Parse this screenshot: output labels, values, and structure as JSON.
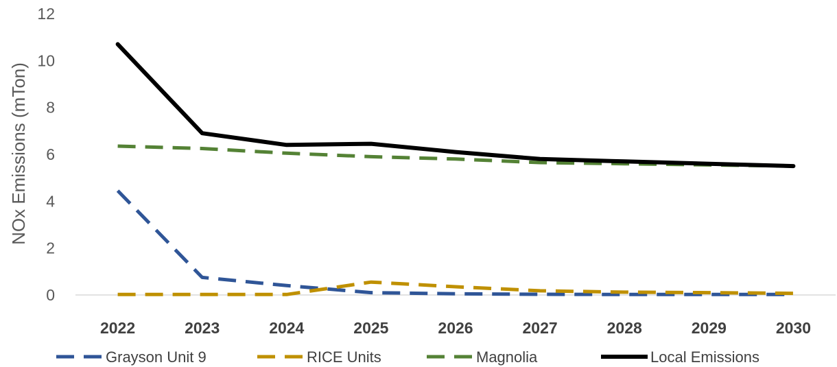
{
  "chart_data": {
    "type": "line",
    "title": "",
    "xlabel": "",
    "ylabel": "NOx Emissions (mTon)",
    "ylim": [
      0,
      12
    ],
    "yticks": [
      0,
      2,
      4,
      6,
      8,
      10,
      12
    ],
    "grid": false,
    "legend_position": "bottom",
    "categories": [
      "2022",
      "2023",
      "2024",
      "2025",
      "2026",
      "2027",
      "2028",
      "2029",
      "2030"
    ],
    "series": [
      {
        "name": "Grayson Unit 9",
        "color": "#2F5597",
        "style": "dashed",
        "values": [
          4.45,
          0.75,
          0.4,
          0.1,
          0.05,
          0.03,
          0.02,
          0.02,
          0.02
        ]
      },
      {
        "name": "RICE Units",
        "color": "#BF9000",
        "style": "dashed",
        "values": [
          0.02,
          0.02,
          0.02,
          0.55,
          0.35,
          0.18,
          0.12,
          0.1,
          0.07
        ]
      },
      {
        "name": "Magnolia",
        "color": "#548235",
        "style": "dashed",
        "values": [
          6.35,
          6.25,
          6.05,
          5.9,
          5.8,
          5.65,
          5.6,
          5.55,
          5.5
        ]
      },
      {
        "name": "Local Emissions",
        "color": "#000000",
        "style": "solid",
        "values": [
          10.7,
          6.9,
          6.4,
          6.45,
          6.1,
          5.8,
          5.7,
          5.6,
          5.5
        ]
      }
    ]
  }
}
